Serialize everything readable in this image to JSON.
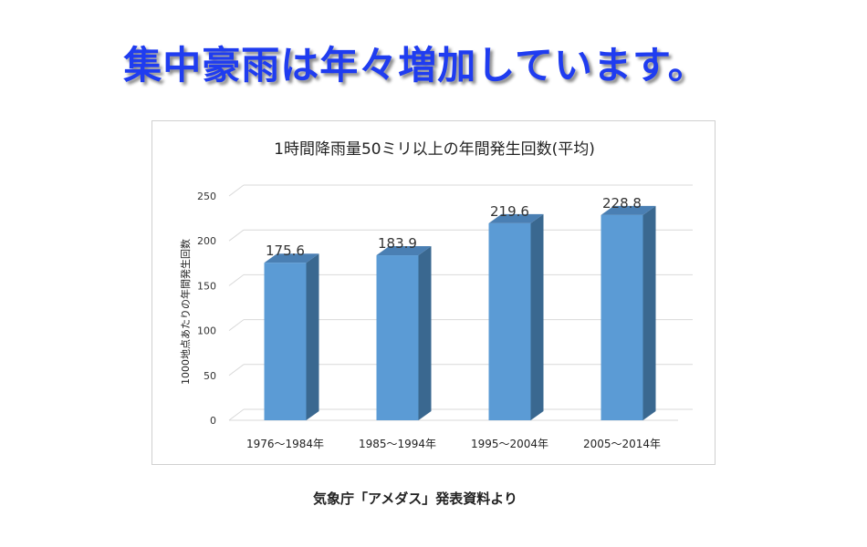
{
  "headline": "集中豪雨は年々増加しています。",
  "source_note": "気象庁「アメダス」発表資料より",
  "colors": {
    "headline": "#1f3cf0",
    "bar_front": "#5b9bd5",
    "bar_side": "#3a6890",
    "bar_top": "#4a7fb3"
  },
  "chart_data": {
    "type": "bar",
    "title": "1時間降雨量50ミリ以上の年間発生回数(平均)",
    "ylabel": "1000地点あたりの年間発生回数",
    "xlabel": "",
    "categories": [
      "1976～1984年",
      "1985～1994年",
      "1995～2004年",
      "2005～2014年"
    ],
    "values": [
      175.6,
      183.9,
      219.6,
      228.8
    ],
    "value_labels": [
      "175.6",
      "183.9",
      "219.6",
      "228.8"
    ],
    "ylim": [
      0,
      250
    ],
    "yticks": [
      0,
      50,
      100,
      150,
      200,
      250
    ],
    "grid": true,
    "legend": "none",
    "style": "3d-column"
  }
}
